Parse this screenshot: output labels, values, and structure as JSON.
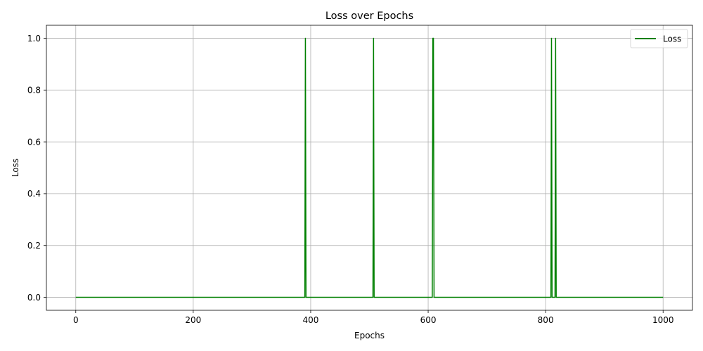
{
  "chart_data": {
    "type": "line",
    "title": "Loss over Epochs",
    "xlabel": "Epochs",
    "ylabel": "Loss",
    "xlim": [
      -50,
      1050
    ],
    "ylim": [
      -0.05,
      1.05
    ],
    "xticks": [
      0,
      200,
      400,
      600,
      800,
      1000
    ],
    "yticks": [
      0.0,
      0.2,
      0.4,
      0.6,
      0.8,
      1.0
    ],
    "xtick_labels": [
      "0",
      "200",
      "400",
      "600",
      "800",
      "1000"
    ],
    "ytick_labels": [
      "0.0",
      "0.2",
      "0.4",
      "0.6",
      "0.8",
      "1.0"
    ],
    "grid": true,
    "legend_position": "top-right",
    "series": [
      {
        "name": "Loss",
        "color": "#008000",
        "x": [
          0,
          390,
          391,
          392,
          506,
          507,
          508,
          607,
          608,
          609,
          610,
          809,
          810,
          811,
          816,
          817,
          818,
          1000
        ],
        "y": [
          0,
          0,
          1,
          0,
          0,
          1,
          0,
          0,
          1,
          1,
          0,
          0,
          1,
          0,
          0,
          1,
          0,
          0
        ]
      }
    ]
  }
}
